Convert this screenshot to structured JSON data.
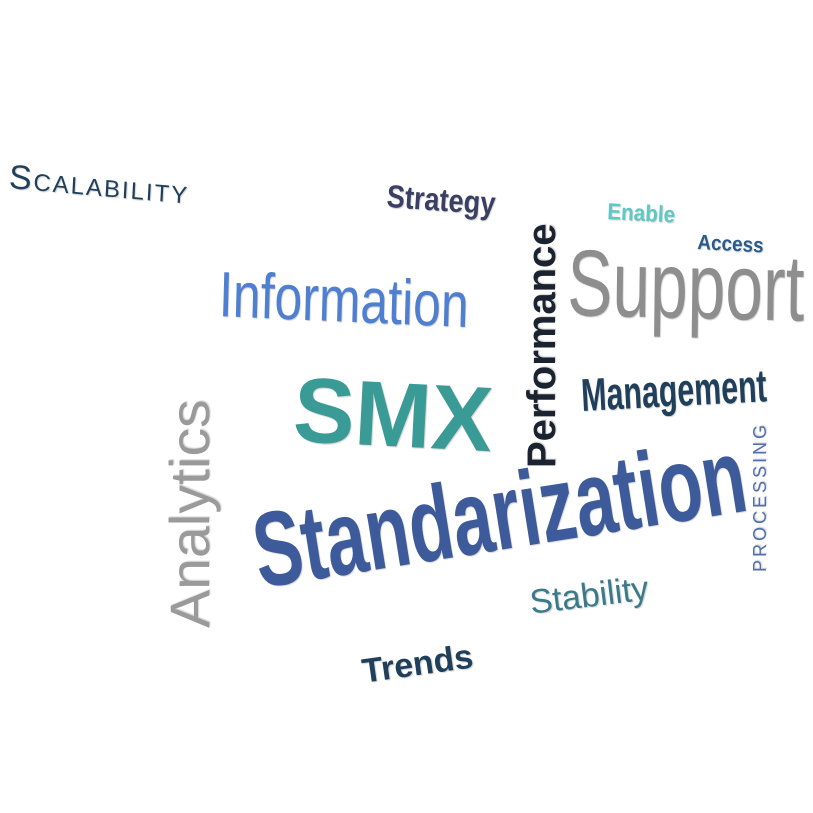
{
  "words": {
    "scalability": {
      "text": "Scalability",
      "color": "#1f3f5a"
    },
    "strategy": {
      "text": "Strategy",
      "color": "#3a3f63"
    },
    "performance": {
      "text": "Performance",
      "color": "#1b2330"
    },
    "enable": {
      "text": "Enable",
      "color": "#5ec8c4"
    },
    "access": {
      "text": "Access",
      "color": "#2a5c8a"
    },
    "information": {
      "text": "Information",
      "color": "#4f7fd0"
    },
    "support": {
      "text": "Support",
      "color": "#8e8e8e"
    },
    "analytics": {
      "text": "Analytics",
      "color": "#9a9a9a"
    },
    "smx": {
      "text": "SMX",
      "color": "#3a9a95"
    },
    "management": {
      "text": "Management",
      "color": "#1f3f5a"
    },
    "processing": {
      "text": "PROCESSING",
      "color": "#4f6fb0"
    },
    "standarization": {
      "text": "Standarization",
      "color": "#3d5a9a"
    },
    "stability": {
      "text": "Stability",
      "color": "#3a7a8a"
    },
    "trends": {
      "text": "Trends",
      "color": "#1f3f5a"
    }
  }
}
